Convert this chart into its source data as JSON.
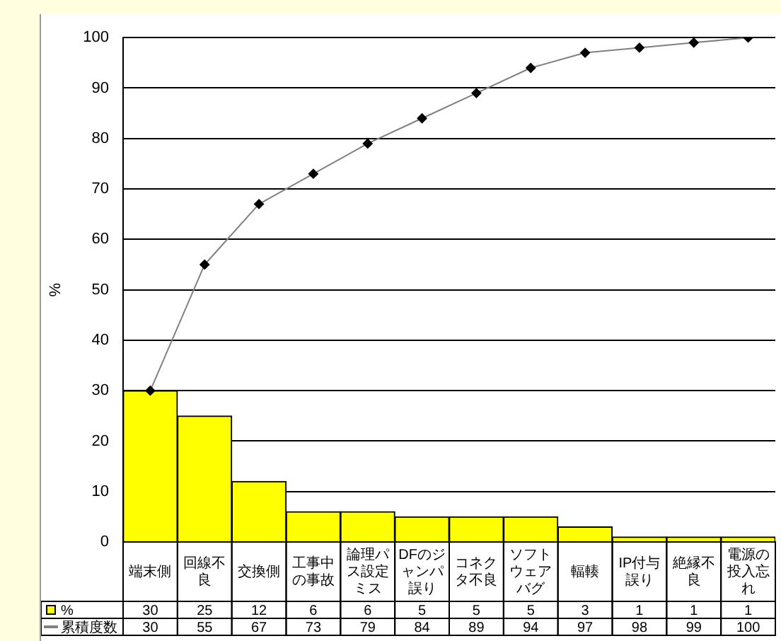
{
  "chart_data": {
    "type": "bar",
    "ylabel": "%",
    "categories": [
      "端末側",
      "回線不良",
      "交換側",
      "工事中の事故",
      "論理パス設定ミス",
      "DFのジャンパ誤り",
      "コネクタ不良",
      "ソフトウェアバグ",
      "輻輳",
      "IP付与誤り",
      "絶縁不良",
      "電源の投入忘れ"
    ],
    "series": [
      {
        "name": "%",
        "color": "#ffff00",
        "values": [
          30,
          25,
          12,
          6,
          6,
          5,
          5,
          5,
          3,
          1,
          1,
          1
        ]
      },
      {
        "name": "累積度数",
        "type": "line",
        "color": "#808080",
        "values": [
          30,
          55,
          67,
          73,
          79,
          84,
          89,
          94,
          97,
          98,
          99,
          100
        ]
      }
    ],
    "ylim": [
      0,
      100
    ],
    "yticks": [
      0,
      10,
      20,
      30,
      40,
      50,
      60,
      70,
      80,
      90,
      100
    ],
    "grid": "y",
    "legend": "bottom",
    "marker": "diamond",
    "data_labels": true
  }
}
